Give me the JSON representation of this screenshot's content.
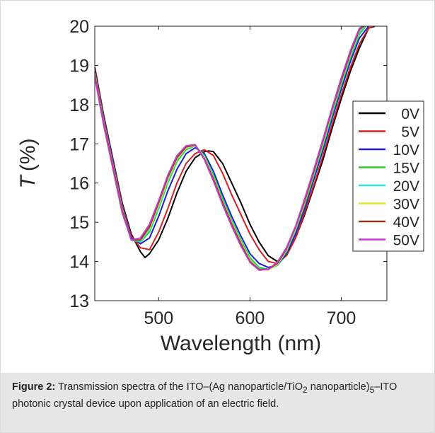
{
  "chart_data": {
    "type": "line",
    "title": "",
    "xlabel": "Wavelength (nm)",
    "ylabel_symbol": "T",
    "ylabel_unit": "(%)",
    "xlim": [
      430,
      750
    ],
    "ylim": [
      13,
      20
    ],
    "xticks": [
      500,
      600,
      700
    ],
    "yticks": [
      13,
      14,
      15,
      16,
      17,
      18,
      19,
      20
    ],
    "grid": false,
    "legend_position": "right",
    "series": [
      {
        "name": "0V",
        "color": "#000000",
        "x": [
          430,
          440,
          450,
          460,
          470,
          480,
          485,
          490,
          500,
          510,
          520,
          530,
          540,
          550,
          555,
          560,
          570,
          580,
          590,
          600,
          610,
          620,
          630,
          640,
          650,
          660,
          670,
          680,
          690,
          700,
          710,
          720,
          730,
          737
        ],
        "y": [
          18.95,
          17.7,
          16.6,
          15.5,
          14.7,
          14.25,
          14.1,
          14.2,
          14.55,
          15.1,
          15.75,
          16.3,
          16.65,
          16.8,
          16.82,
          16.8,
          16.5,
          16.0,
          15.5,
          14.95,
          14.5,
          14.15,
          14.0,
          14.15,
          14.6,
          15.2,
          15.9,
          16.6,
          17.4,
          18.15,
          18.85,
          19.45,
          19.95,
          20.0
        ]
      },
      {
        "name": "5V",
        "color": "#d42020",
        "x": [
          430,
          440,
          450,
          460,
          470,
          480,
          490,
          500,
          510,
          520,
          530,
          540,
          550,
          560,
          570,
          580,
          590,
          600,
          610,
          620,
          630,
          640,
          650,
          660,
          670,
          680,
          690,
          700,
          710,
          720,
          730,
          735
        ],
        "y": [
          18.9,
          17.65,
          16.55,
          15.45,
          14.65,
          14.35,
          14.3,
          14.75,
          15.35,
          16.0,
          16.5,
          16.75,
          16.85,
          16.7,
          16.25,
          15.7,
          15.2,
          14.7,
          14.3,
          14.0,
          13.95,
          14.15,
          14.6,
          15.25,
          15.95,
          16.7,
          17.5,
          18.25,
          18.95,
          19.55,
          19.95,
          20.0
        ]
      },
      {
        "name": "10V",
        "color": "#1f1fcc",
        "x": [
          430,
          440,
          450,
          460,
          470,
          480,
          490,
          500,
          510,
          520,
          530,
          540,
          550,
          560,
          570,
          580,
          590,
          600,
          610,
          620,
          630,
          640,
          650,
          660,
          670,
          680,
          690,
          700,
          710,
          720,
          730
        ],
        "y": [
          18.85,
          17.6,
          16.5,
          15.4,
          14.6,
          14.45,
          14.6,
          15.15,
          15.8,
          16.35,
          16.75,
          16.9,
          16.75,
          16.3,
          15.7,
          15.15,
          14.65,
          14.2,
          13.95,
          13.85,
          13.9,
          14.2,
          14.7,
          15.35,
          16.1,
          16.85,
          17.65,
          18.4,
          19.1,
          19.7,
          20.0
        ]
      },
      {
        "name": "15V",
        "color": "#2ecc2e",
        "x": [
          430,
          440,
          450,
          460,
          470,
          480,
          490,
          500,
          510,
          520,
          530,
          540,
          550,
          560,
          570,
          580,
          590,
          600,
          610,
          620,
          630,
          640,
          650,
          660,
          670,
          680,
          690,
          700,
          710,
          720,
          727
        ],
        "y": [
          18.8,
          17.55,
          16.45,
          15.35,
          14.55,
          14.5,
          14.75,
          15.35,
          16.0,
          16.55,
          16.85,
          16.95,
          16.7,
          16.2,
          15.6,
          15.05,
          14.55,
          14.1,
          13.85,
          13.8,
          13.9,
          14.25,
          14.8,
          15.45,
          16.2,
          16.95,
          17.75,
          18.5,
          19.2,
          19.8,
          20.0
        ]
      },
      {
        "name": "20V",
        "color": "#2ee6e6",
        "x": [
          430,
          440,
          450,
          460,
          470,
          480,
          490,
          500,
          510,
          520,
          530,
          540,
          550,
          560,
          570,
          580,
          590,
          600,
          610,
          620,
          630,
          640,
          650,
          660,
          670,
          680,
          690,
          700,
          710,
          720,
          726
        ],
        "y": [
          18.8,
          17.55,
          16.45,
          15.35,
          14.55,
          14.52,
          14.8,
          15.4,
          16.05,
          16.6,
          16.88,
          16.95,
          16.68,
          16.15,
          15.55,
          15.0,
          14.5,
          14.05,
          13.82,
          13.78,
          13.92,
          14.28,
          14.82,
          15.5,
          16.25,
          17.0,
          17.8,
          18.55,
          19.25,
          19.85,
          20.0
        ]
      },
      {
        "name": "30V",
        "color": "#e6e62e",
        "x": [
          430,
          440,
          450,
          460,
          470,
          480,
          490,
          500,
          510,
          520,
          530,
          540,
          550,
          560,
          570,
          580,
          590,
          600,
          610,
          620,
          630,
          640,
          650,
          660,
          670,
          680,
          690,
          700,
          710,
          720,
          725
        ],
        "y": [
          18.78,
          17.52,
          16.42,
          15.32,
          14.55,
          14.55,
          14.85,
          15.45,
          16.1,
          16.62,
          16.9,
          16.96,
          16.65,
          16.12,
          15.52,
          14.98,
          14.48,
          14.03,
          13.8,
          13.78,
          13.93,
          14.3,
          14.85,
          15.52,
          16.28,
          17.05,
          17.85,
          18.6,
          19.3,
          19.9,
          20.0
        ]
      },
      {
        "name": "40V",
        "color": "#8b3a1a",
        "x": [
          430,
          440,
          450,
          460,
          470,
          480,
          490,
          500,
          510,
          520,
          530,
          540,
          550,
          560,
          570,
          580,
          590,
          600,
          610,
          620,
          630,
          640,
          650,
          660,
          670,
          680,
          690,
          700,
          710,
          720,
          725
        ],
        "y": [
          18.75,
          17.5,
          16.4,
          15.3,
          14.55,
          14.55,
          14.88,
          15.5,
          16.15,
          16.65,
          16.92,
          16.97,
          16.62,
          16.1,
          15.5,
          14.95,
          14.45,
          14.0,
          13.8,
          13.8,
          13.95,
          14.32,
          14.88,
          15.55,
          16.3,
          17.08,
          17.88,
          18.62,
          19.32,
          19.92,
          20.0
        ]
      },
      {
        "name": "50V",
        "color": "#cc33cc",
        "x": [
          430,
          440,
          450,
          460,
          470,
          480,
          490,
          500,
          510,
          520,
          530,
          540,
          550,
          560,
          570,
          580,
          590,
          600,
          610,
          620,
          630,
          640,
          650,
          660,
          670,
          680,
          690,
          700,
          710,
          720,
          724
        ],
        "y": [
          18.7,
          17.45,
          16.35,
          15.25,
          14.55,
          14.6,
          14.95,
          15.55,
          16.2,
          16.7,
          16.95,
          16.98,
          16.6,
          16.05,
          15.45,
          14.9,
          14.4,
          13.98,
          13.78,
          13.8,
          13.98,
          14.35,
          14.9,
          15.6,
          16.35,
          17.12,
          17.92,
          18.68,
          19.38,
          19.95,
          20.0
        ]
      }
    ]
  },
  "caption": {
    "label": "Figure 2:",
    "text_part1": " Transmission spectra of the ITO–(Ag nanoparticle/TiO",
    "sub1": "2",
    "text_part2": " nanoparticle)",
    "sub2": "5",
    "text_part3": "–ITO photonic crystal device upon application of an electric field."
  }
}
